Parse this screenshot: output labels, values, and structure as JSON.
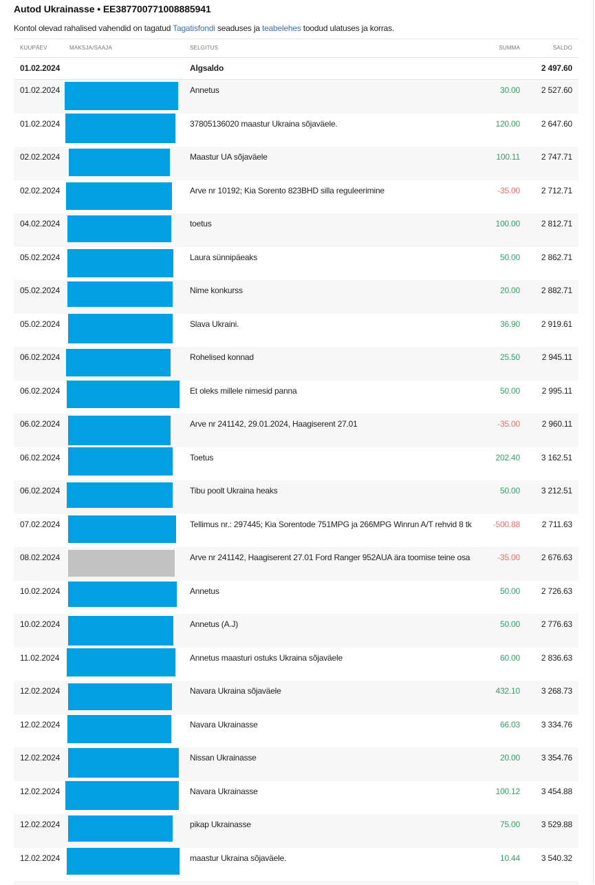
{
  "header": {
    "title": "Autod Ukrainasse • EE387700771008885941",
    "notice_prefix": "Kontol olevad rahalised vahendid on tagatud ",
    "notice_link1": "Tagatisfondi",
    "notice_middle": " seaduses ja ",
    "notice_link2": "teabelehes",
    "notice_suffix": " toodud ulatuses ja korras."
  },
  "colors": {
    "positive": "#3e9a6a",
    "negative": "#e07272",
    "redaction": "#00a0e3",
    "redaction_alt": "#c2c2c2",
    "link": "#3f6fa8"
  },
  "table": {
    "columns": {
      "date": "KUUPÄEV",
      "party": "MAKSJA/SAAJA",
      "description": "SELGITUS",
      "amount": "SUMMA",
      "balance": "SALDO"
    },
    "opening": {
      "date": "01.02.2024",
      "description": "Algsaldo",
      "balance": "2 497.60"
    },
    "rows": [
      {
        "date": "01.02.2024",
        "description": "Annetus",
        "amount": "30.00",
        "balance": "2 527.60",
        "sign": "pos"
      },
      {
        "date": "01.02.2024",
        "description": "37805136020 maastur Ukraina sõjaväele.",
        "amount": "120.00",
        "balance": "2 647.60",
        "sign": "pos"
      },
      {
        "date": "02.02.2024",
        "description": "Maastur UA sõjaväele",
        "amount": "100.11",
        "balance": "2 747.71",
        "sign": "pos"
      },
      {
        "date": "02.02.2024",
        "description": "Arve nr 10192; Kia Sorento 823BHD silla reguleerimine",
        "amount": "-35.00",
        "balance": "2 712.71",
        "sign": "neg"
      },
      {
        "date": "04.02.2024",
        "description": "toetus",
        "amount": "100.00",
        "balance": "2 812.71",
        "sign": "pos"
      },
      {
        "date": "05.02.2024",
        "description": "Laura sünnipäeaks",
        "amount": "50.00",
        "balance": "2 862.71",
        "sign": "pos"
      },
      {
        "date": "05.02.2024",
        "description": "Nime konkurss",
        "amount": "20.00",
        "balance": "2 882.71",
        "sign": "pos"
      },
      {
        "date": "05.02.2024",
        "description": "Slava Ukraini.",
        "amount": "36.90",
        "balance": "2 919.61",
        "sign": "pos"
      },
      {
        "date": "06.02.2024",
        "description": "Rohelised konnad",
        "amount": "25.50",
        "balance": "2 945.11",
        "sign": "pos"
      },
      {
        "date": "06.02.2024",
        "description": "Et oleks millele nimesid panna",
        "amount": "50.00",
        "balance": "2 995.11",
        "sign": "pos"
      },
      {
        "date": "06.02.2024",
        "description": "Arve nr 241142, 29.01.2024, Haagiserent 27.01",
        "amount": "-35.00",
        "balance": "2 960.11",
        "sign": "neg"
      },
      {
        "date": "06.02.2024",
        "description": "Toetus",
        "amount": "202.40",
        "balance": "3 162.51",
        "sign": "pos"
      },
      {
        "date": "06.02.2024",
        "description": "Tibu poolt Ukraina heaks",
        "amount": "50.00",
        "balance": "3 212.51",
        "sign": "pos"
      },
      {
        "date": "07.02.2024",
        "description": "Tellimus nr.: 297445; Kia Sorentode 751MPG ja 266MPG Winrun A/T rehvid 8 tk",
        "amount": "-500.88",
        "balance": "2 711.63",
        "sign": "neg"
      },
      {
        "date": "08.02.2024",
        "description": "Arve nr 241142, Haagiserent 27.01 Ford Ranger 952AUA ära toomise teine osa",
        "amount": "-35.00",
        "balance": "2 676.63",
        "sign": "neg",
        "redaction": "gray"
      },
      {
        "date": "10.02.2024",
        "description": "Annetus",
        "amount": "50.00",
        "balance": "2 726.63",
        "sign": "pos"
      },
      {
        "date": "10.02.2024",
        "description": "Annetus (A.J)",
        "amount": "50.00",
        "balance": "2 776.63",
        "sign": "pos"
      },
      {
        "date": "11.02.2024",
        "description": "Annetus maasturi ostuks Ukraina sõjaväele",
        "amount": "60.00",
        "balance": "2 836.63",
        "sign": "pos"
      },
      {
        "date": "12.02.2024",
        "description": "Navara Ukraina sõjaväele",
        "amount": "432.10",
        "balance": "3 268.73",
        "sign": "pos"
      },
      {
        "date": "12.02.2024",
        "description": "Navara Ukrainasse",
        "amount": "66.03",
        "balance": "3 334.76",
        "sign": "pos"
      },
      {
        "date": "12.02.2024",
        "description": "Nissan Ukrainasse",
        "amount": "20.00",
        "balance": "3 354.76",
        "sign": "pos"
      },
      {
        "date": "12.02.2024",
        "description": "Navara Ukrainasse",
        "amount": "100.12",
        "balance": "3 454.88",
        "sign": "pos"
      },
      {
        "date": "12.02.2024",
        "description": "pikap Ukrainasse",
        "amount": "75.00",
        "balance": "3 529.88",
        "sign": "pos"
      },
      {
        "date": "12.02.2024",
        "description": "maastur Ukraina sõjaväele.",
        "amount": "10.44",
        "balance": "3 540.32",
        "sign": "pos"
      }
    ]
  }
}
